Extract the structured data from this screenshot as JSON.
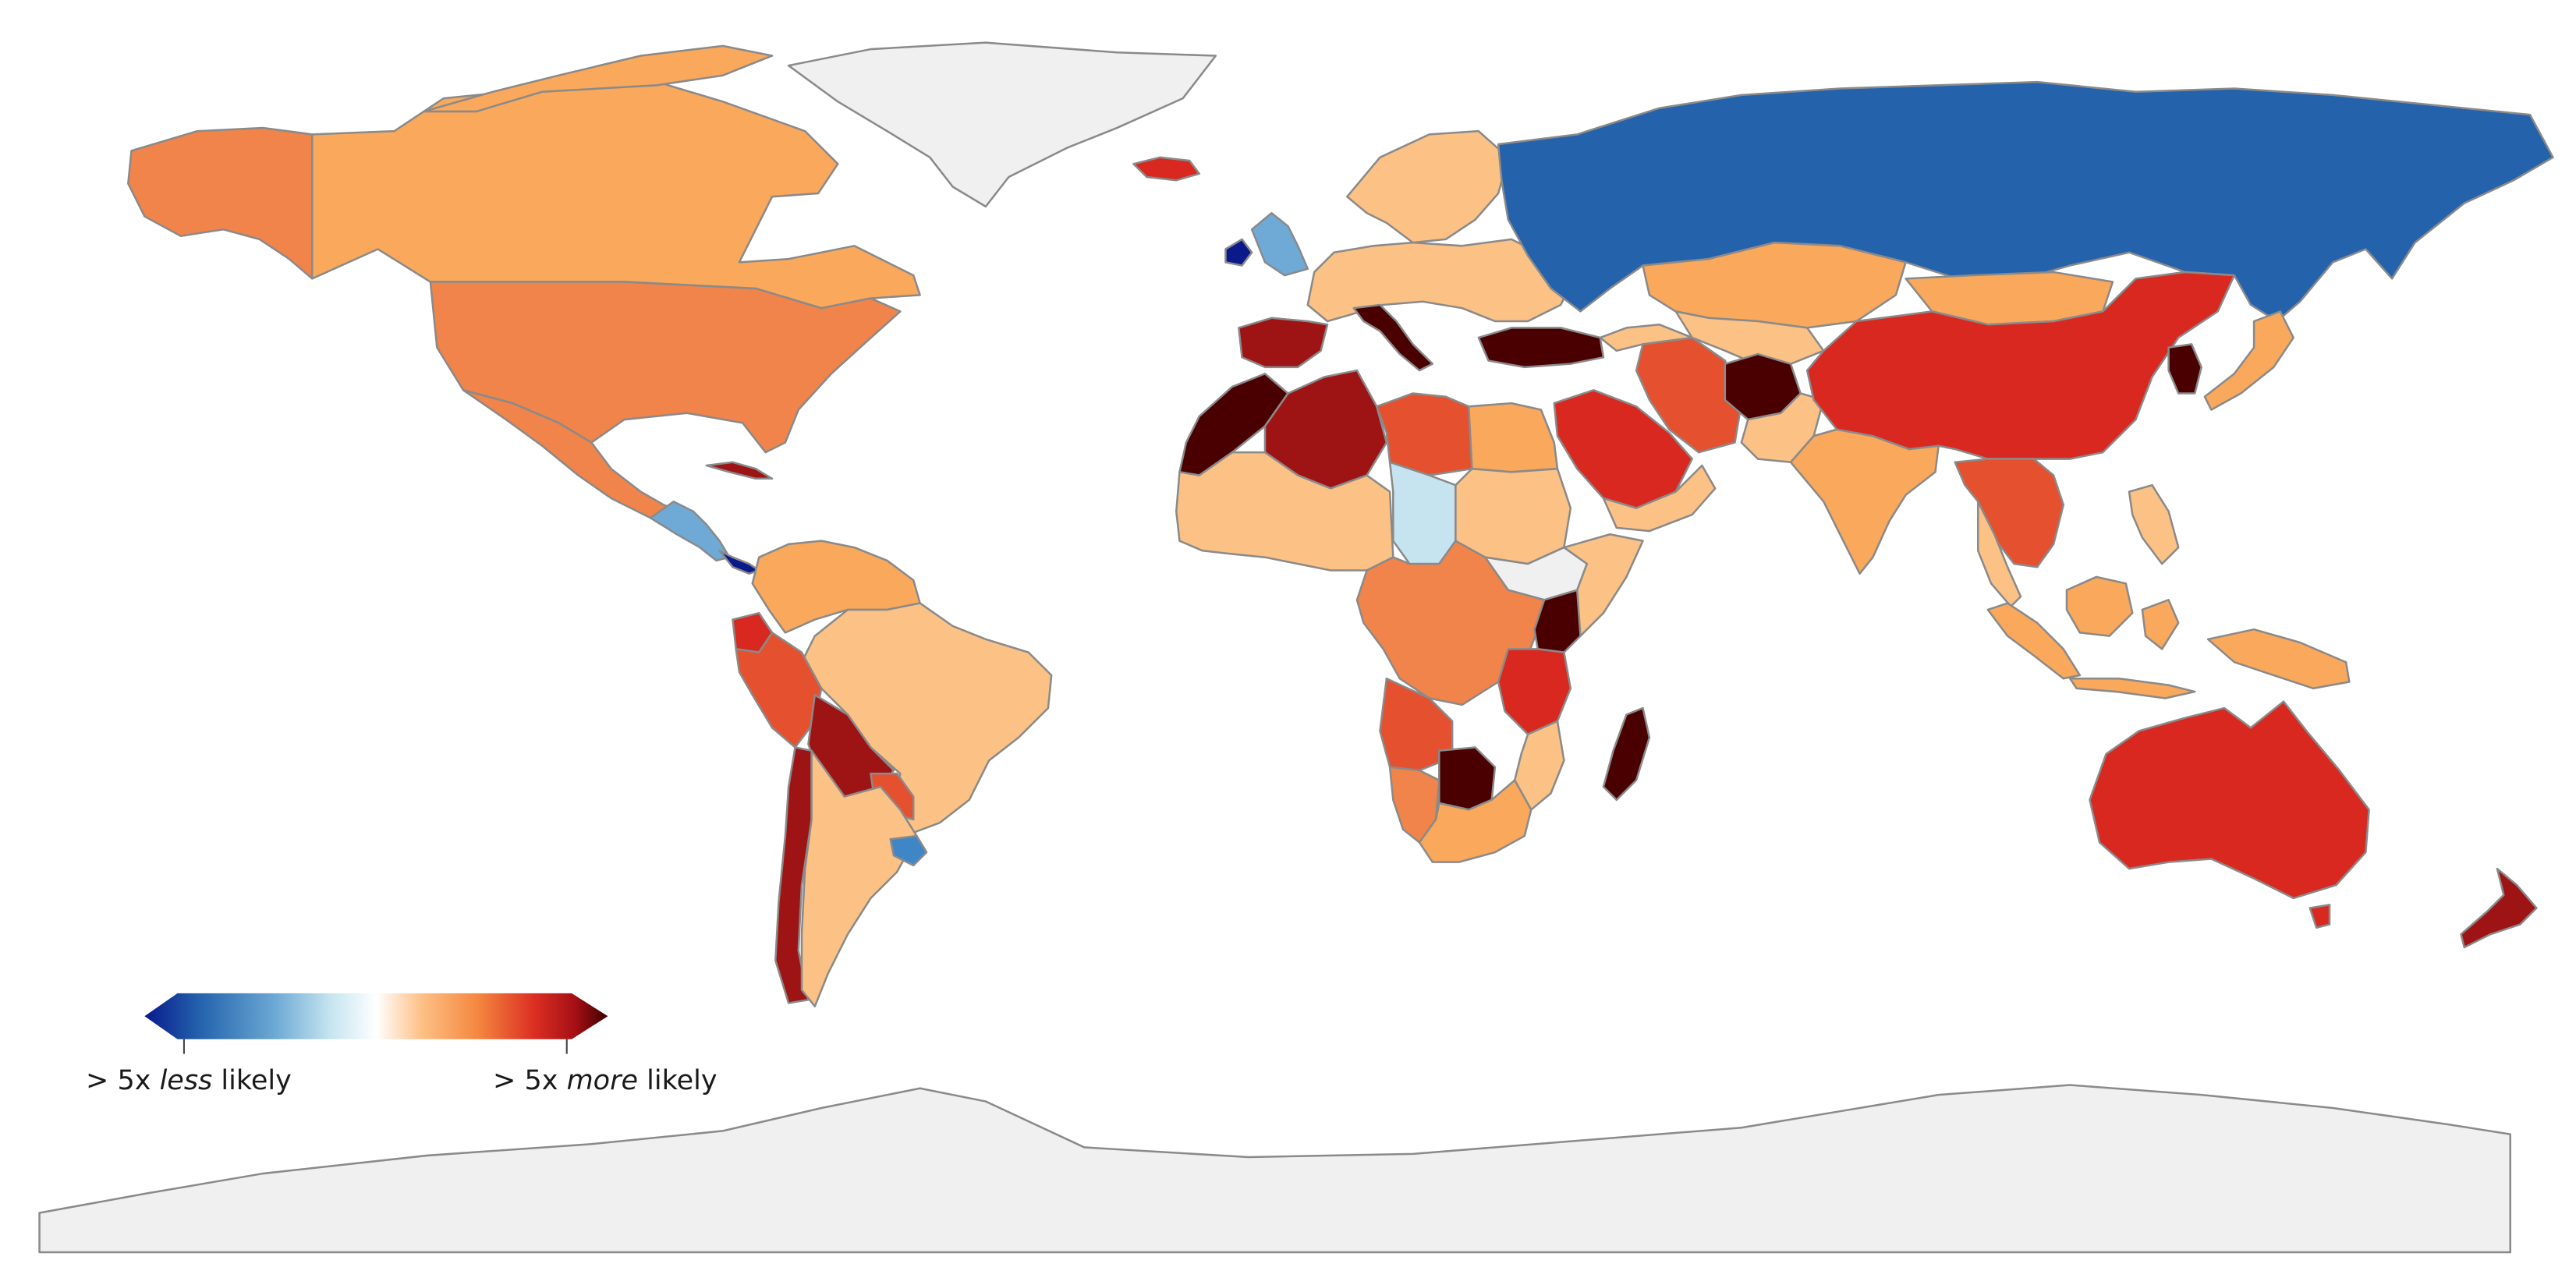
{
  "legend": {
    "left_prefix": "> 5x ",
    "left_emphasis": "less",
    "left_suffix": " likely",
    "right_prefix": "> 5x ",
    "right_emphasis": "more",
    "right_suffix": " likely",
    "colors": [
      "#08198c",
      "#2463ad",
      "#6ba8d4",
      "#c5e4f0",
      "#ffffff",
      "#fdbf84",
      "#f4873f",
      "#dc2f23",
      "#a50f15",
      "#3d0000"
    ]
  },
  "palette": {
    "land_neutral": "#f0f0f0",
    "darkest_red": "#4a0000",
    "dark_red": "#9e1414",
    "red": "#d8281f",
    "red_orange": "#e5502f",
    "orange": "#f0844a",
    "light_orange": "#f9a85c",
    "peach": "#fcc185",
    "pale_blue": "#c6e4f0",
    "light_blue": "#6fa9d6",
    "mid_blue": "#3f86c6",
    "blue": "#2462ab",
    "navy": "#0a1a8a"
  },
  "regions": [
    {
      "name": "Canada",
      "color": "light_orange"
    },
    {
      "name": "Alaska",
      "color": "orange"
    },
    {
      "name": "Greenland",
      "color": "land_neutral"
    },
    {
      "name": "United States",
      "color": "orange"
    },
    {
      "name": "Mexico",
      "color": "orange"
    },
    {
      "name": "Cuba",
      "color": "dark_red"
    },
    {
      "name": "Central America",
      "color": "light_blue"
    },
    {
      "name": "Panama",
      "color": "navy"
    },
    {
      "name": "Colombia / Venezuela",
      "color": "light_orange"
    },
    {
      "name": "Ecuador",
      "color": "red"
    },
    {
      "name": "Peru",
      "color": "red_orange"
    },
    {
      "name": "Brazil",
      "color": "peach"
    },
    {
      "name": "Bolivia",
      "color": "dark_red"
    },
    {
      "name": "Paraguay",
      "color": "red_orange"
    },
    {
      "name": "Uruguay",
      "color": "mid_blue"
    },
    {
      "name": "Chile",
      "color": "dark_red"
    },
    {
      "name": "Argentina",
      "color": "peach"
    },
    {
      "name": "Russia",
      "color": "blue"
    },
    {
      "name": "Scandinavia",
      "color": "peach"
    },
    {
      "name": "Iceland",
      "color": "red"
    },
    {
      "name": "United Kingdom",
      "color": "light_blue"
    },
    {
      "name": "Ireland",
      "color": "navy"
    },
    {
      "name": "Europe",
      "color": "peach"
    },
    {
      "name": "Spain",
      "color": "dark_red"
    },
    {
      "name": "Italy",
      "color": "darkest_red"
    },
    {
      "name": "Turkey",
      "color": "darkest_red"
    },
    {
      "name": "Morocco",
      "color": "darkest_red"
    },
    {
      "name": "Algeria",
      "color": "dark_red"
    },
    {
      "name": "Libya",
      "color": "red_orange"
    },
    {
      "name": "Egypt",
      "color": "light_orange"
    },
    {
      "name": "West Africa",
      "color": "peach"
    },
    {
      "name": "Chad",
      "color": "pale_blue"
    },
    {
      "name": "Sudan",
      "color": "peach"
    },
    {
      "name": "Ethiopia",
      "color": "land_neutral"
    },
    {
      "name": "Central Africa",
      "color": "orange"
    },
    {
      "name": "Kenya",
      "color": "darkest_red"
    },
    {
      "name": "Tanzania",
      "color": "red"
    },
    {
      "name": "Angola",
      "color": "red_orange"
    },
    {
      "name": "Namibia",
      "color": "orange"
    },
    {
      "name": "Botswana",
      "color": "darkest_red"
    },
    {
      "name": "South Africa",
      "color": "light_orange"
    },
    {
      "name": "Madagascar",
      "color": "darkest_red"
    },
    {
      "name": "Saudi Arabia",
      "color": "red"
    },
    {
      "name": "Iran",
      "color": "red_orange"
    },
    {
      "name": "Afghanistan",
      "color": "darkest_red"
    },
    {
      "name": "Kazakhstan",
      "color": "light_orange"
    },
    {
      "name": "Mongolia",
      "color": "light_orange"
    },
    {
      "name": "China",
      "color": "red"
    },
    {
      "name": "India",
      "color": "light_orange"
    },
    {
      "name": "Southeast Asia",
      "color": "red_orange"
    },
    {
      "name": "Korea",
      "color": "darkest_red"
    },
    {
      "name": "Japan",
      "color": "light_orange"
    },
    {
      "name": "Indonesia",
      "color": "light_orange"
    },
    {
      "name": "Papua New Guinea",
      "color": "light_orange"
    },
    {
      "name": "Australia",
      "color": "red"
    },
    {
      "name": "New Zealand",
      "color": "dark_red"
    },
    {
      "name": "Antarctica",
      "color": "land_neutral"
    }
  ]
}
